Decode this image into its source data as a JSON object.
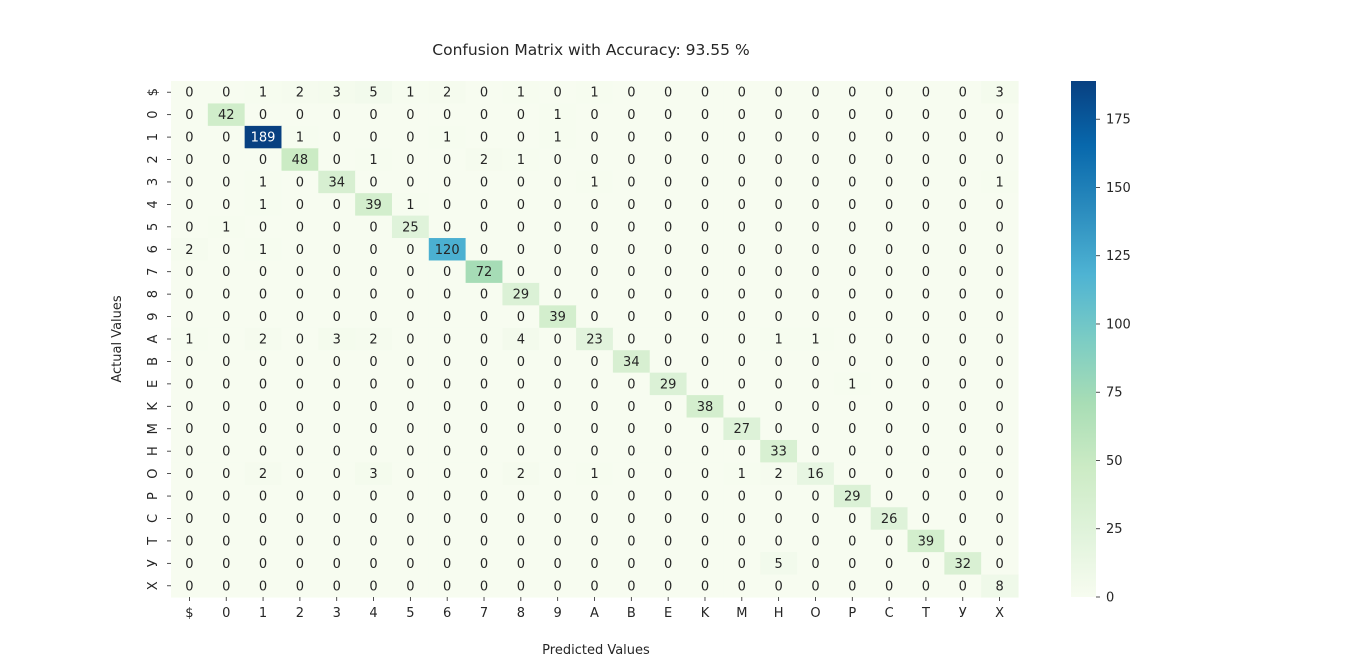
{
  "chart_data": {
    "type": "heatmap",
    "title": "Confusion Matrix with Accuracy: 93.55 %",
    "xlabel": "Predicted Values",
    "ylabel": "Actual Values",
    "x_categories": [
      "$",
      "0",
      "1",
      "2",
      "3",
      "4",
      "5",
      "6",
      "7",
      "8",
      "9",
      "A",
      "B",
      "E",
      "K",
      "M",
      "H",
      "O",
      "P",
      "C",
      "T",
      "У",
      "X"
    ],
    "y_categories": [
      "$",
      "0",
      "1",
      "2",
      "3",
      "4",
      "5",
      "6",
      "7",
      "8",
      "9",
      "A",
      "B",
      "E",
      "K",
      "M",
      "H",
      "O",
      "P",
      "C",
      "T",
      "У",
      "X"
    ],
    "values": [
      [
        0,
        0,
        1,
        2,
        3,
        5,
        1,
        2,
        0,
        1,
        0,
        1,
        0,
        0,
        0,
        0,
        0,
        0,
        0,
        0,
        0,
        0,
        3
      ],
      [
        0,
        42,
        0,
        0,
        0,
        0,
        0,
        0,
        0,
        0,
        1,
        0,
        0,
        0,
        0,
        0,
        0,
        0,
        0,
        0,
        0,
        0,
        0
      ],
      [
        0,
        0,
        189,
        1,
        0,
        0,
        0,
        1,
        0,
        0,
        1,
        0,
        0,
        0,
        0,
        0,
        0,
        0,
        0,
        0,
        0,
        0,
        0
      ],
      [
        0,
        0,
        0,
        48,
        0,
        1,
        0,
        0,
        2,
        1,
        0,
        0,
        0,
        0,
        0,
        0,
        0,
        0,
        0,
        0,
        0,
        0,
        0
      ],
      [
        0,
        0,
        1,
        0,
        34,
        0,
        0,
        0,
        0,
        0,
        0,
        1,
        0,
        0,
        0,
        0,
        0,
        0,
        0,
        0,
        0,
        0,
        1
      ],
      [
        0,
        0,
        1,
        0,
        0,
        39,
        1,
        0,
        0,
        0,
        0,
        0,
        0,
        0,
        0,
        0,
        0,
        0,
        0,
        0,
        0,
        0,
        0
      ],
      [
        0,
        1,
        0,
        0,
        0,
        0,
        25,
        0,
        0,
        0,
        0,
        0,
        0,
        0,
        0,
        0,
        0,
        0,
        0,
        0,
        0,
        0,
        0
      ],
      [
        2,
        0,
        1,
        0,
        0,
        0,
        0,
        120,
        0,
        0,
        0,
        0,
        0,
        0,
        0,
        0,
        0,
        0,
        0,
        0,
        0,
        0,
        0
      ],
      [
        0,
        0,
        0,
        0,
        0,
        0,
        0,
        0,
        72,
        0,
        0,
        0,
        0,
        0,
        0,
        0,
        0,
        0,
        0,
        0,
        0,
        0,
        0
      ],
      [
        0,
        0,
        0,
        0,
        0,
        0,
        0,
        0,
        0,
        29,
        0,
        0,
        0,
        0,
        0,
        0,
        0,
        0,
        0,
        0,
        0,
        0,
        0
      ],
      [
        0,
        0,
        0,
        0,
        0,
        0,
        0,
        0,
        0,
        0,
        39,
        0,
        0,
        0,
        0,
        0,
        0,
        0,
        0,
        0,
        0,
        0,
        0
      ],
      [
        1,
        0,
        2,
        0,
        3,
        2,
        0,
        0,
        0,
        4,
        0,
        23,
        0,
        0,
        0,
        0,
        1,
        1,
        0,
        0,
        0,
        0,
        0
      ],
      [
        0,
        0,
        0,
        0,
        0,
        0,
        0,
        0,
        0,
        0,
        0,
        0,
        34,
        0,
        0,
        0,
        0,
        0,
        0,
        0,
        0,
        0,
        0
      ],
      [
        0,
        0,
        0,
        0,
        0,
        0,
        0,
        0,
        0,
        0,
        0,
        0,
        0,
        29,
        0,
        0,
        0,
        0,
        1,
        0,
        0,
        0,
        0
      ],
      [
        0,
        0,
        0,
        0,
        0,
        0,
        0,
        0,
        0,
        0,
        0,
        0,
        0,
        0,
        38,
        0,
        0,
        0,
        0,
        0,
        0,
        0,
        0
      ],
      [
        0,
        0,
        0,
        0,
        0,
        0,
        0,
        0,
        0,
        0,
        0,
        0,
        0,
        0,
        0,
        27,
        0,
        0,
        0,
        0,
        0,
        0,
        0
      ],
      [
        0,
        0,
        0,
        0,
        0,
        0,
        0,
        0,
        0,
        0,
        0,
        0,
        0,
        0,
        0,
        0,
        33,
        0,
        0,
        0,
        0,
        0,
        0
      ],
      [
        0,
        0,
        2,
        0,
        0,
        3,
        0,
        0,
        0,
        2,
        0,
        1,
        0,
        0,
        0,
        1,
        2,
        16,
        0,
        0,
        0,
        0,
        0
      ],
      [
        0,
        0,
        0,
        0,
        0,
        0,
        0,
        0,
        0,
        0,
        0,
        0,
        0,
        0,
        0,
        0,
        0,
        0,
        29,
        0,
        0,
        0,
        0
      ],
      [
        0,
        0,
        0,
        0,
        0,
        0,
        0,
        0,
        0,
        0,
        0,
        0,
        0,
        0,
        0,
        0,
        0,
        0,
        0,
        26,
        0,
        0,
        0
      ],
      [
        0,
        0,
        0,
        0,
        0,
        0,
        0,
        0,
        0,
        0,
        0,
        0,
        0,
        0,
        0,
        0,
        0,
        0,
        0,
        0,
        39,
        0,
        0
      ],
      [
        0,
        0,
        0,
        0,
        0,
        0,
        0,
        0,
        0,
        0,
        0,
        0,
        0,
        0,
        0,
        0,
        5,
        0,
        0,
        0,
        0,
        32,
        0
      ],
      [
        0,
        0,
        0,
        0,
        0,
        0,
        0,
        0,
        0,
        0,
        0,
        0,
        0,
        0,
        0,
        0,
        0,
        0,
        0,
        0,
        0,
        0,
        8
      ]
    ],
    "colormap": "GnBu",
    "colorbar": {
      "range": [
        0,
        189
      ],
      "ticks": [
        0,
        25,
        50,
        75,
        100,
        125,
        150,
        175
      ]
    },
    "annotations": true,
    "grid": false
  }
}
